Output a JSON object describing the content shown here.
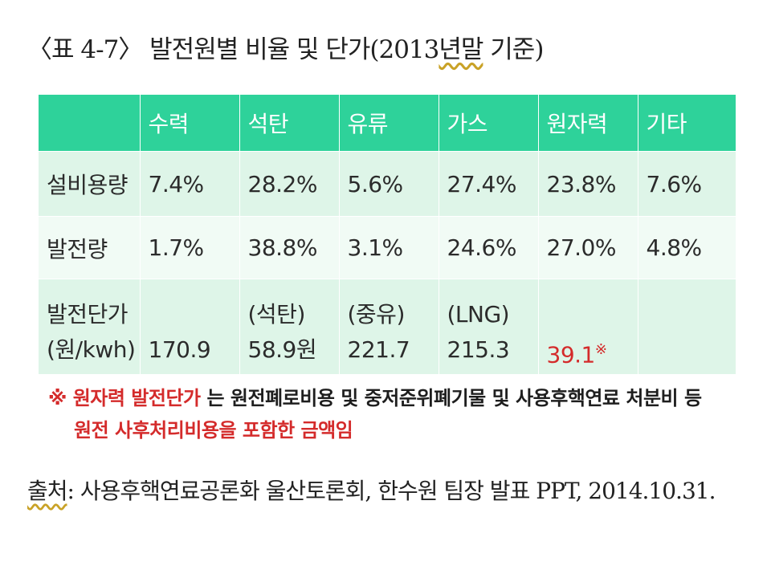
{
  "title": {
    "prefix": "〈표 4-7〉 발전원별 비율 및 단가(2013",
    "underlined": "년말",
    "suffix": " 기준)"
  },
  "table": {
    "headers": [
      "",
      "수력",
      "석탄",
      "유류",
      "가스",
      "원자력",
      "기타"
    ],
    "rows": [
      {
        "label": "설비용량",
        "values": [
          "7.4%",
          "28.2%",
          "5.6%",
          "27.4%",
          "23.8%",
          "7.6%"
        ]
      },
      {
        "label": "발전량",
        "values": [
          "1.7%",
          "38.8%",
          "3.1%",
          "24.6%",
          "27.0%",
          "4.8%"
        ]
      }
    ],
    "cost_row": {
      "label_line1": "발전단가",
      "label_line2": "(원/kwh)",
      "cells": [
        {
          "top": "",
          "bottom": "170.9"
        },
        {
          "top": "(석탄)",
          "bottom": "58.9원"
        },
        {
          "top": "(중유)",
          "bottom": "221.7"
        },
        {
          "top": "(LNG)",
          "bottom": "215.3"
        },
        {
          "top": "",
          "bottom": "39.1",
          "mark": "※"
        },
        {
          "top": "",
          "bottom": ""
        }
      ]
    }
  },
  "note": {
    "symbol": "※",
    "highlight": "원자력 발전단가",
    "line1_rest": " 는 원전폐로비용 및 중저준위폐기물 및 사용후핵연료 처분비 등",
    "line2": "원전 사후처리비용을 포함한 금액임"
  },
  "source": {
    "underlined": "출처",
    "rest": ": 사용후핵연료공론화 울산토론회, 한수원 팀장 발표 PPT, 2014.10.31."
  },
  "colors": {
    "header_bg": "#2ed29a",
    "row_bg_dark": "#def5e8",
    "row_bg_light": "#f1fbf5",
    "highlight_red": "#d42b2b"
  }
}
